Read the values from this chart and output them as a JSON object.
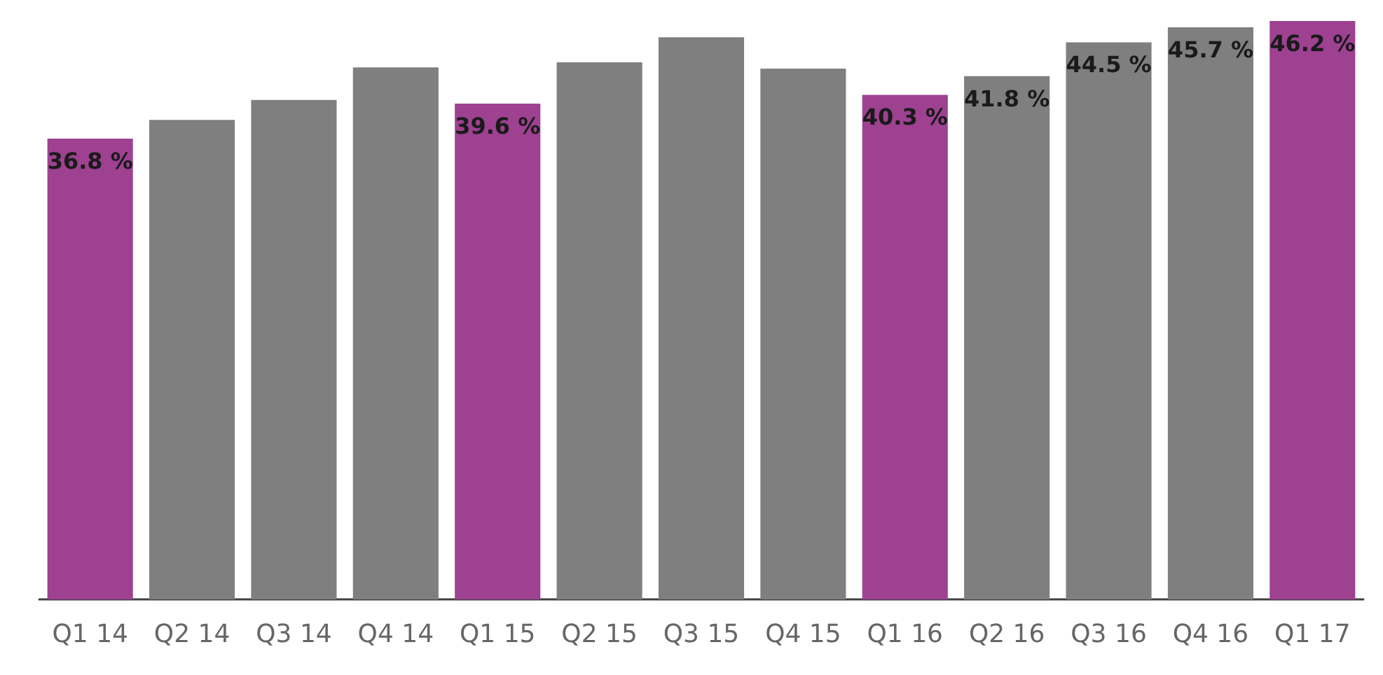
{
  "chart_data": {
    "type": "bar",
    "categories": [
      "Q1 14",
      "Q2 14",
      "Q3 14",
      "Q4 14",
      "Q1 15",
      "Q2 15",
      "Q3 15",
      "Q4 15",
      "Q1 16",
      "Q2 16",
      "Q3 16",
      "Q4 16",
      "Q1 17"
    ],
    "values": [
      36.8,
      38.3,
      39.9,
      42.5,
      39.6,
      42.9,
      44.9,
      42.4,
      40.3,
      41.8,
      44.5,
      45.7,
      46.2
    ],
    "colors": [
      "#9e4191",
      "#7f7f7f",
      "#7f7f7f",
      "#7f7f7f",
      "#9e4191",
      "#7f7f7f",
      "#7f7f7f",
      "#7f7f7f",
      "#9e4191",
      "#7f7f7f",
      "#7f7f7f",
      "#7f7f7f",
      "#9e4191"
    ],
    "value_labels": [
      "36.8 %",
      null,
      null,
      null,
      "39.6 %",
      null,
      null,
      null,
      "40.3 %",
      "41.8 %",
      "44.5 %",
      "45.7 %",
      "46.2 %"
    ]
  }
}
